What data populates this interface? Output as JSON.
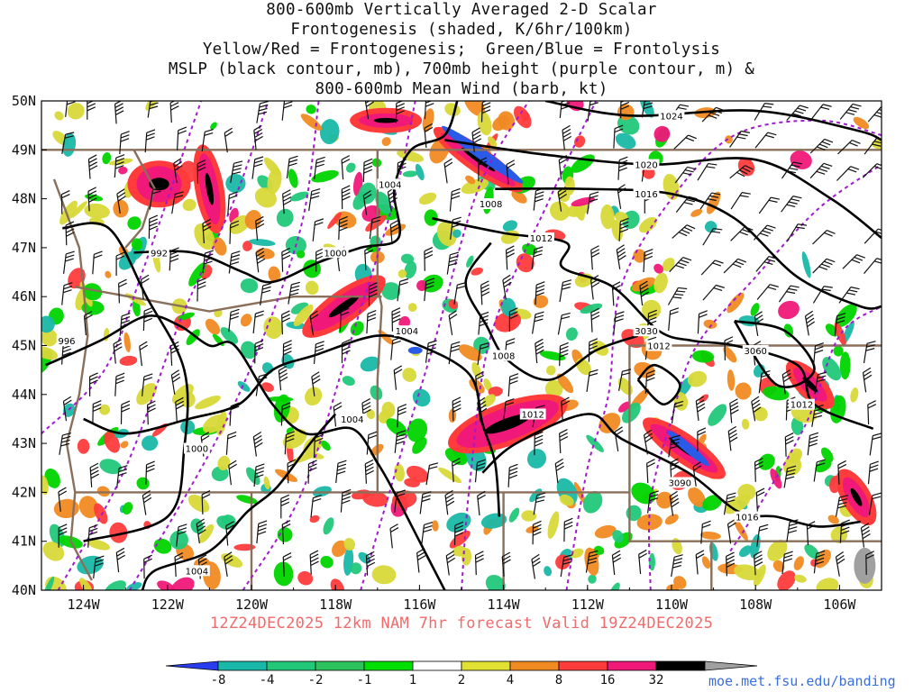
{
  "title_lines": [
    "800-600mb Vertically Averaged 2-D Scalar",
    "Frontogenesis (shaded, K/6hr/100km)",
    "Yellow/Red = Frontogenesis;  Green/Blue = Frontolysis",
    "MSLP (black contour, mb), 700mb height (purple contour, m) &",
    "800-600mb Mean Wind (barb, kt)"
  ],
  "footer": "12Z24DEC2025 12km NAM 7hr forecast Valid 19Z24DEC2025",
  "credit": "moe.met.fsu.edu/banding",
  "map": {
    "lat_labels": [
      "50N",
      "49N",
      "48N",
      "47N",
      "46N",
      "45N",
      "44N",
      "43N",
      "42N",
      "41N",
      "40N"
    ],
    "lon_labels": [
      "124W",
      "122W",
      "120W",
      "118W",
      "116W",
      "114W",
      "112W",
      "110W",
      "108W",
      "106W"
    ],
    "lon_range": [
      -125,
      -105
    ],
    "lat_range": [
      40,
      50
    ],
    "mslp_labels": [
      {
        "text": "1024",
        "lon": -110.0,
        "lat": 49.7
      },
      {
        "text": "1020",
        "lon": -110.6,
        "lat": 48.7
      },
      {
        "text": "1016",
        "lon": -110.6,
        "lat": 48.1
      },
      {
        "text": "1012",
        "lon": -113.1,
        "lat": 47.2
      },
      {
        "text": "1008",
        "lon": -114.3,
        "lat": 47.9
      },
      {
        "text": "1004",
        "lon": -116.7,
        "lat": 48.3
      },
      {
        "text": "1000",
        "lon": -118.0,
        "lat": 46.9
      },
      {
        "text": "992",
        "lon": -122.2,
        "lat": 46.9
      },
      {
        "text": "996",
        "lon": -124.4,
        "lat": 45.1
      },
      {
        "text": "1004",
        "lon": -116.3,
        "lat": 45.3
      },
      {
        "text": "1008",
        "lon": -114.0,
        "lat": 44.8
      },
      {
        "text": "1012",
        "lon": -113.3,
        "lat": 43.6
      },
      {
        "text": "1004",
        "lon": -117.6,
        "lat": 43.5
      },
      {
        "text": "1000",
        "lon": -121.3,
        "lat": 42.9
      },
      {
        "text": "1004",
        "lon": -121.3,
        "lat": 40.4
      },
      {
        "text": "1012",
        "lon": -110.3,
        "lat": 45.0
      },
      {
        "text": "1012",
        "lon": -106.9,
        "lat": 43.8
      },
      {
        "text": "1016",
        "lon": -108.2,
        "lat": 41.5
      }
    ],
    "height_labels": [
      {
        "text": "3030",
        "lon": -110.6,
        "lat": 45.3
      },
      {
        "text": "3060",
        "lon": -108.0,
        "lat": 44.9
      },
      {
        "text": "3090",
        "lon": -109.8,
        "lat": 42.2
      }
    ],
    "colors": {
      "mslp": "#000000",
      "height": "#a21ad0",
      "border": "#8a6f5a",
      "frontogenesis": [
        "#d8d838",
        "#f08a22",
        "#ff3b3b",
        "#f01878",
        "#000000",
        "#a0a0a0"
      ],
      "frontolysis": [
        "#00d400",
        "#22c77a",
        "#1ab8a8",
        "#2a5ae8"
      ]
    }
  },
  "colorbar": {
    "labels": [
      "-8",
      "-4",
      "-2",
      "-1",
      "1",
      "2",
      "4",
      "8",
      "16",
      "32"
    ],
    "colors": [
      "#2a3cf0",
      "#1ab8a8",
      "#22c77a",
      "#2ec25c",
      "#00e000",
      "#ffffff",
      "#e1e134",
      "#f08a22",
      "#ff3b3b",
      "#f01878",
      "#000000",
      "#a0a0a0"
    ]
  }
}
